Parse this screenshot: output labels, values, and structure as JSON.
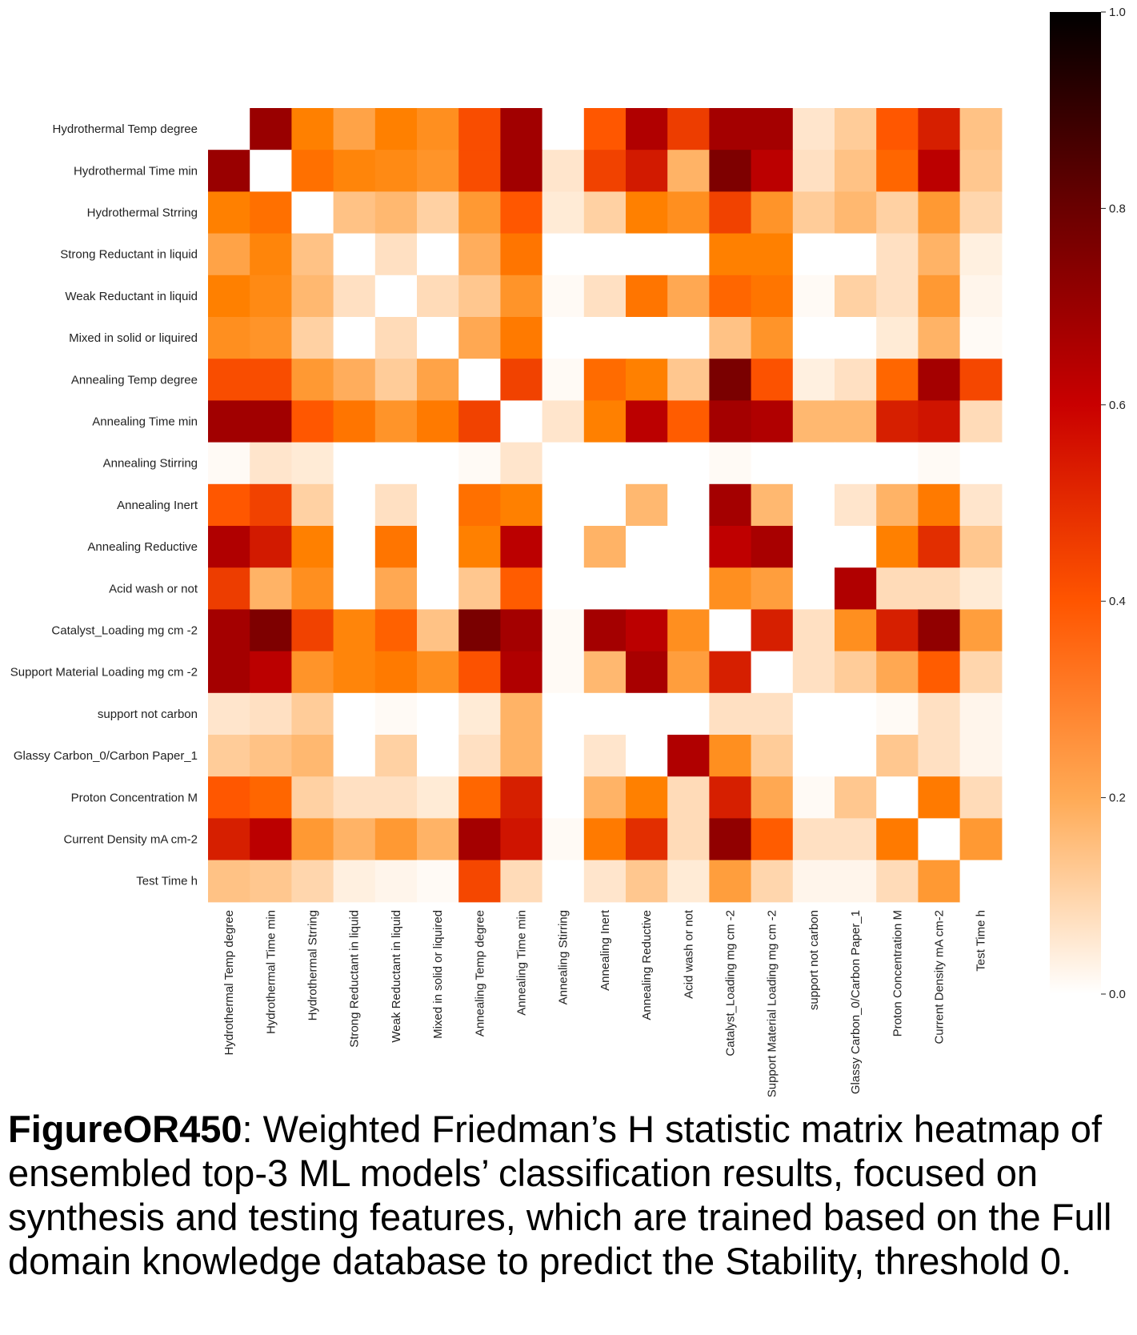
{
  "chart_data": {
    "type": "heatmap",
    "rows": [
      "Hydrothermal Temp degree",
      "Hydrothermal Time min",
      "Hydrothermal Strring",
      "Strong Reductant in liquid",
      "Weak Reductant in liquid",
      "Mixed in solid or liquired",
      "Annealing Temp degree",
      "Annealing Time min",
      "Annealing Stirring",
      "Annealing Inert",
      "Annealing Reductive",
      "Acid wash or not",
      "Catalyst_Loading mg cm -2",
      "Support Material Loading mg cm -2",
      "support not carbon",
      "Glassy Carbon_0/Carbon Paper_1",
      "Proton Concentration M",
      "Current Density mA cm-2",
      "Test Time h"
    ],
    "columns": [
      "Hydrothermal Temp degree",
      "Hydrothermal Time min",
      "Hydrothermal Strring",
      "Strong Reductant in liquid",
      "Weak Reductant in liquid",
      "Mixed in solid or liquired",
      "Annealing Temp degree",
      "Annealing Time min",
      "Annealing Stirring",
      "Annealing Inert",
      "Annealing Reductive",
      "Acid wash or not",
      "Catalyst_Loading mg cm -2",
      "Support Material Loading mg cm -2",
      "support not carbon",
      "Glassy Carbon_0/Carbon Paper_1",
      "Proton Concentration M",
      "Current Density mA cm-2",
      "Test Time h"
    ],
    "values": [
      [
        0.0,
        0.6,
        0.25,
        0.18,
        0.25,
        0.22,
        0.35,
        0.58,
        0.0,
        0.33,
        0.54,
        0.38,
        0.57,
        0.57,
        0.05,
        0.1,
        0.33,
        0.44,
        0.12
      ],
      [
        0.6,
        0.0,
        0.28,
        0.24,
        0.23,
        0.21,
        0.35,
        0.58,
        0.05,
        0.37,
        0.45,
        0.15,
        0.67,
        0.51,
        0.06,
        0.12,
        0.3,
        0.51,
        0.11
      ],
      [
        0.25,
        0.28,
        0.0,
        0.12,
        0.14,
        0.09,
        0.2,
        0.33,
        0.04,
        0.09,
        0.25,
        0.22,
        0.37,
        0.21,
        0.1,
        0.14,
        0.09,
        0.2,
        0.08
      ],
      [
        0.18,
        0.24,
        0.12,
        0.0,
        0.06,
        0.0,
        0.16,
        0.27,
        0.0,
        0.0,
        0.0,
        0.0,
        0.25,
        0.25,
        0.0,
        0.0,
        0.06,
        0.15,
        0.03
      ],
      [
        0.25,
        0.23,
        0.14,
        0.06,
        0.0,
        0.07,
        0.11,
        0.21,
        0.01,
        0.06,
        0.27,
        0.17,
        0.3,
        0.27,
        0.01,
        0.09,
        0.06,
        0.2,
        0.02
      ],
      [
        0.22,
        0.21,
        0.09,
        0.0,
        0.07,
        0.0,
        0.17,
        0.26,
        0.0,
        0.0,
        0.0,
        0.0,
        0.12,
        0.21,
        0.0,
        0.0,
        0.04,
        0.15,
        0.01
      ],
      [
        0.35,
        0.35,
        0.2,
        0.16,
        0.1,
        0.18,
        0.0,
        0.37,
        0.01,
        0.29,
        0.25,
        0.11,
        0.68,
        0.34,
        0.03,
        0.06,
        0.3,
        0.57,
        0.36
      ],
      [
        0.58,
        0.58,
        0.33,
        0.27,
        0.21,
        0.26,
        0.37,
        0.0,
        0.05,
        0.25,
        0.51,
        0.32,
        0.57,
        0.54,
        0.14,
        0.14,
        0.44,
        0.46,
        0.07
      ],
      [
        0.01,
        0.05,
        0.04,
        0.0,
        0.0,
        0.0,
        0.01,
        0.05,
        0.0,
        0.0,
        0.0,
        0.0,
        0.01,
        0.0,
        0.0,
        0.0,
        0.0,
        0.01,
        0.0
      ],
      [
        0.33,
        0.37,
        0.09,
        0.0,
        0.06,
        0.0,
        0.28,
        0.25,
        0.0,
        0.0,
        0.14,
        0.0,
        0.57,
        0.14,
        0.0,
        0.05,
        0.15,
        0.26,
        0.05
      ],
      [
        0.54,
        0.45,
        0.25,
        0.0,
        0.27,
        0.0,
        0.25,
        0.51,
        0.0,
        0.15,
        0.0,
        0.0,
        0.5,
        0.56,
        0.0,
        0.0,
        0.25,
        0.41,
        0.11
      ],
      [
        0.38,
        0.15,
        0.22,
        0.0,
        0.17,
        0.0,
        0.11,
        0.32,
        0.0,
        0.0,
        0.0,
        0.0,
        0.22,
        0.19,
        0.0,
        0.54,
        0.07,
        0.07,
        0.04
      ],
      [
        0.57,
        0.67,
        0.37,
        0.24,
        0.31,
        0.12,
        0.68,
        0.57,
        0.01,
        0.57,
        0.51,
        0.22,
        0.0,
        0.44,
        0.06,
        0.22,
        0.44,
        0.62,
        0.19
      ],
      [
        0.57,
        0.51,
        0.21,
        0.24,
        0.26,
        0.22,
        0.34,
        0.54,
        0.01,
        0.14,
        0.56,
        0.19,
        0.44,
        0.0,
        0.06,
        0.1,
        0.17,
        0.32,
        0.08
      ],
      [
        0.05,
        0.06,
        0.1,
        0.0,
        0.01,
        0.0,
        0.04,
        0.15,
        0.0,
        0.0,
        0.0,
        0.0,
        0.06,
        0.06,
        0.0,
        0.0,
        0.01,
        0.06,
        0.02
      ],
      [
        0.1,
        0.12,
        0.14,
        0.0,
        0.09,
        0.0,
        0.06,
        0.15,
        0.0,
        0.05,
        0.0,
        0.54,
        0.22,
        0.1,
        0.0,
        0.0,
        0.11,
        0.06,
        0.02
      ],
      [
        0.33,
        0.3,
        0.09,
        0.06,
        0.06,
        0.04,
        0.3,
        0.44,
        0.0,
        0.15,
        0.25,
        0.07,
        0.44,
        0.17,
        0.01,
        0.11,
        0.0,
        0.26,
        0.07
      ],
      [
        0.44,
        0.51,
        0.2,
        0.15,
        0.2,
        0.15,
        0.57,
        0.46,
        0.01,
        0.26,
        0.41,
        0.07,
        0.62,
        0.32,
        0.06,
        0.06,
        0.26,
        0.0,
        0.2
      ],
      [
        0.12,
        0.11,
        0.08,
        0.03,
        0.02,
        0.01,
        0.36,
        0.07,
        0.0,
        0.05,
        0.11,
        0.04,
        0.19,
        0.08,
        0.02,
        0.02,
        0.07,
        0.2,
        0.0
      ]
    ],
    "colormap": "gist_heat_r",
    "colorbar": {
      "min": 0.0,
      "max": 1.0,
      "ticks": [
        0.0,
        0.2,
        0.4,
        0.6,
        0.8,
        1.0
      ],
      "tick_labels": [
        "0.0",
        "0.2",
        "0.4",
        "0.6",
        "0.8",
        "1.0"
      ]
    }
  },
  "caption": {
    "label": "FigureOR450",
    "text": ": Weighted Friedman’s H statistic matrix heatmap of ensembled top-3 ML models’ classification results, focused on synthesis and testing features, which are trained based on the Full domain knowledge database to predict the Stability, threshold 0."
  }
}
